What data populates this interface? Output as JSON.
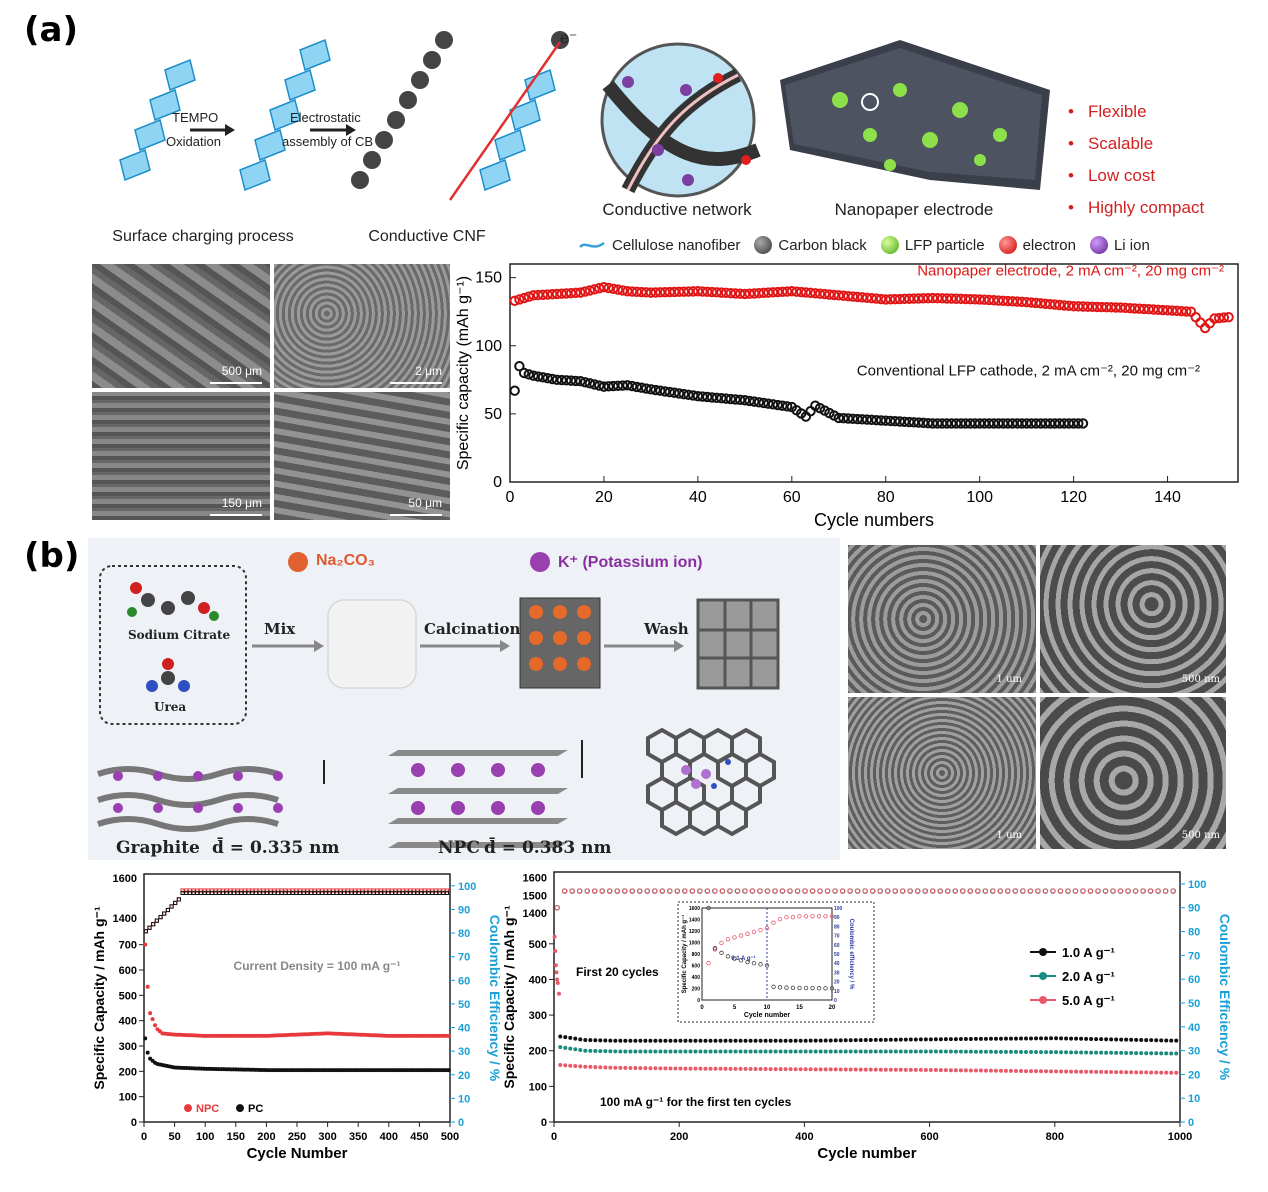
{
  "panel_a": {
    "letter": "(a)",
    "scheme": {
      "step1": "TEMPO",
      "step1b": "Oxidation",
      "step2": "Electrostatic",
      "step2b": "assembly of CB",
      "caption1": "Surface charging process",
      "caption2": "Conductive CNF",
      "caption3": "Conductive network",
      "caption4": "Nanopaper electrode",
      "electron_label": "e⁻"
    },
    "bullets": [
      "Flexible",
      "Scalable",
      "Low cost",
      "Highly compact"
    ],
    "legend": [
      "Cellulose nanofiber",
      "Carbon black",
      "LFP particle",
      "electron",
      "Li ion"
    ],
    "legend_colors": [
      "#3aa0d8",
      "#555555",
      "#7bcf3a",
      "#e02020",
      "#7a3fa0"
    ],
    "sem_scales": [
      "500 μm",
      "2 μm",
      "150 μm",
      "50 μm"
    ]
  },
  "panel_b": {
    "letter": "(b)",
    "scheme": {
      "na2co3": "Na₂CO₃",
      "kion": "K⁺ (Potassium ion)",
      "sodium_citrate": "Sodium Citrate",
      "urea": "Urea",
      "mix": "Mix",
      "calcination": "Calcination",
      "wash": "Wash",
      "graphite": "Graphite",
      "graphite_d": "d̄ = 0.335 nm",
      "npc": "NPC",
      "npc_d": "d̄ = 0.383 nm"
    },
    "sem_scales": [
      "1 um",
      "500 nm",
      "1 um",
      "500 nm"
    ]
  },
  "chart_data": [
    {
      "type": "scatter",
      "id": "a-capacity",
      "xlabel": "Cycle numbers",
      "ylabel": "Specific capacity (mAh g⁻¹)",
      "xlim": [
        0,
        155
      ],
      "ylim": [
        0,
        160
      ],
      "xticks": [
        0,
        20,
        40,
        60,
        80,
        100,
        120,
        140
      ],
      "yticks": [
        0,
        50,
        100,
        150
      ],
      "series": [
        {
          "name": "Nanopaper electrode, 2 mA cm⁻², 20 mg cm⁻²",
          "color": "#e01515",
          "x": [
            1,
            5,
            10,
            15,
            20,
            25,
            30,
            40,
            50,
            60,
            70,
            80,
            90,
            100,
            110,
            120,
            130,
            140,
            145,
            148,
            150,
            153
          ],
          "y": [
            133,
            137,
            138,
            139,
            143,
            140,
            139,
            140,
            138,
            140,
            137,
            134,
            135,
            134,
            132,
            129,
            128,
            126,
            125,
            113,
            120,
            121
          ]
        },
        {
          "name": "Conventional LFP cathode, 2 mA cm⁻², 20 mg cm⁻²",
          "color": "#111111",
          "x": [
            1,
            2,
            3,
            5,
            10,
            15,
            20,
            25,
            30,
            40,
            50,
            60,
            63,
            65,
            70,
            80,
            90,
            100,
            110,
            122
          ],
          "y": [
            67,
            85,
            80,
            78,
            75,
            74,
            70,
            71,
            68,
            63,
            60,
            55,
            48,
            56,
            47,
            45,
            43,
            43,
            43,
            43
          ]
        }
      ]
    },
    {
      "type": "scatter",
      "id": "b-left",
      "xlabel": "Cycle Number",
      "ylabel": "Specific Capacity / mAh g⁻¹",
      "y2label": "Coulombic Efficiency / %",
      "xlim": [
        0,
        500
      ],
      "xticks": [
        0,
        50,
        100,
        150,
        200,
        250,
        300,
        350,
        400,
        450,
        500
      ],
      "yticks": [
        0,
        100,
        200,
        300,
        400,
        500,
        600,
        700
      ],
      "ybreak_ticks": [
        1400,
        1600
      ],
      "y2ticks": [
        0,
        10,
        20,
        30,
        40,
        50,
        60,
        70,
        80,
        90,
        100
      ],
      "annotation": "Current Density = 100 mA g⁻¹",
      "series": [
        {
          "name": "NPC",
          "color": "#e8393c",
          "x": [
            2,
            5,
            10,
            20,
            30,
            50,
            100,
            200,
            300,
            400,
            500
          ],
          "y": [
            700,
            560,
            430,
            370,
            350,
            345,
            340,
            340,
            350,
            340,
            340
          ]
        },
        {
          "name": "PC",
          "color": "#111111",
          "x": [
            2,
            5,
            10,
            20,
            30,
            50,
            100,
            200,
            300,
            400,
            500
          ],
          "y": [
            330,
            280,
            250,
            230,
            225,
            215,
            210,
            205,
            205,
            205,
            205
          ]
        }
      ]
    },
    {
      "type": "scatter",
      "id": "b-right",
      "xlabel": "Cycle number",
      "ylabel": "Specific Capacity / mAh g⁻¹",
      "y2label": "Coulombic Efficiency / %",
      "xlim": [
        0,
        1000
      ],
      "xticks": [
        0,
        200,
        400,
        600,
        800,
        1000
      ],
      "yticks": [
        0,
        100,
        200,
        300,
        400,
        500
      ],
      "ybreak_ticks": [
        1400,
        1500,
        1600
      ],
      "y2ticks": [
        0,
        10,
        20,
        30,
        40,
        50,
        60,
        70,
        80,
        90,
        100
      ],
      "annotation1": "First 20 cycles",
      "annotation2": "100 mA g⁻¹ for the first ten cycles",
      "inset": {
        "xlabel": "Cycle number",
        "ylabel": "Specific Capacity / mAh g⁻¹",
        "y2label": "Coulombic efficiency / %",
        "note": "0.1 A g⁻¹",
        "xticks": [
          0,
          5,
          10,
          15,
          20
        ],
        "yticks": [
          0,
          200,
          400,
          600,
          800,
          1000,
          1200,
          1400,
          1600
        ],
        "y2ticks": [
          0,
          10,
          20,
          30,
          40,
          50,
          60,
          70,
          80,
          90,
          100
        ]
      },
      "series": [
        {
          "name": "1.0 A g⁻¹",
          "color": "#111111",
          "x": [
            10,
            50,
            100,
            200,
            400,
            600,
            800,
            1000
          ],
          "y": [
            240,
            230,
            228,
            228,
            228,
            232,
            235,
            228
          ]
        },
        {
          "name": "2.0 A g⁻¹",
          "color": "#1a8c7e",
          "x": [
            10,
            50,
            100,
            200,
            400,
            600,
            800,
            1000
          ],
          "y": [
            210,
            200,
            198,
            198,
            198,
            198,
            196,
            192
          ]
        },
        {
          "name": "5.0 A g⁻¹",
          "color": "#e85a6a",
          "x": [
            10,
            50,
            100,
            200,
            400,
            600,
            800,
            1000
          ],
          "y": [
            160,
            155,
            152,
            150,
            148,
            146,
            142,
            138
          ]
        }
      ]
    }
  ]
}
